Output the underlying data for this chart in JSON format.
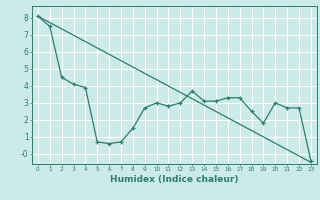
{
  "xlabel": "Humidex (Indice chaleur)",
  "bg_color": "#cceae7",
  "grid_color": "#ffffff",
  "line_color": "#2e7d6e",
  "line1_x": [
    0,
    1,
    2,
    3,
    4,
    5,
    6,
    7,
    8,
    9,
    10,
    11,
    12,
    13,
    14,
    15,
    16,
    17,
    18,
    19,
    20,
    21,
    22,
    23
  ],
  "line1_y": [
    8.1,
    7.5,
    4.5,
    4.1,
    3.9,
    0.7,
    0.6,
    0.7,
    1.5,
    2.7,
    3.0,
    2.8,
    3.0,
    3.7,
    3.1,
    3.1,
    3.3,
    3.3,
    2.5,
    1.8,
    3.0,
    2.7,
    2.7,
    -0.4
  ],
  "line2_x": [
    0,
    23
  ],
  "line2_y": [
    8.1,
    -0.5
  ],
  "ylim": [
    -0.6,
    8.7
  ],
  "xlim": [
    -0.5,
    23.5
  ],
  "yticks": [
    0,
    1,
    2,
    3,
    4,
    5,
    6,
    7,
    8
  ],
  "ytick_labels": [
    "-0",
    "1",
    "2",
    "3",
    "4",
    "5",
    "6",
    "7",
    "8"
  ],
  "xticks": [
    0,
    1,
    2,
    3,
    4,
    5,
    6,
    7,
    8,
    9,
    10,
    11,
    12,
    13,
    14,
    15,
    16,
    17,
    18,
    19,
    20,
    21,
    22,
    23
  ]
}
